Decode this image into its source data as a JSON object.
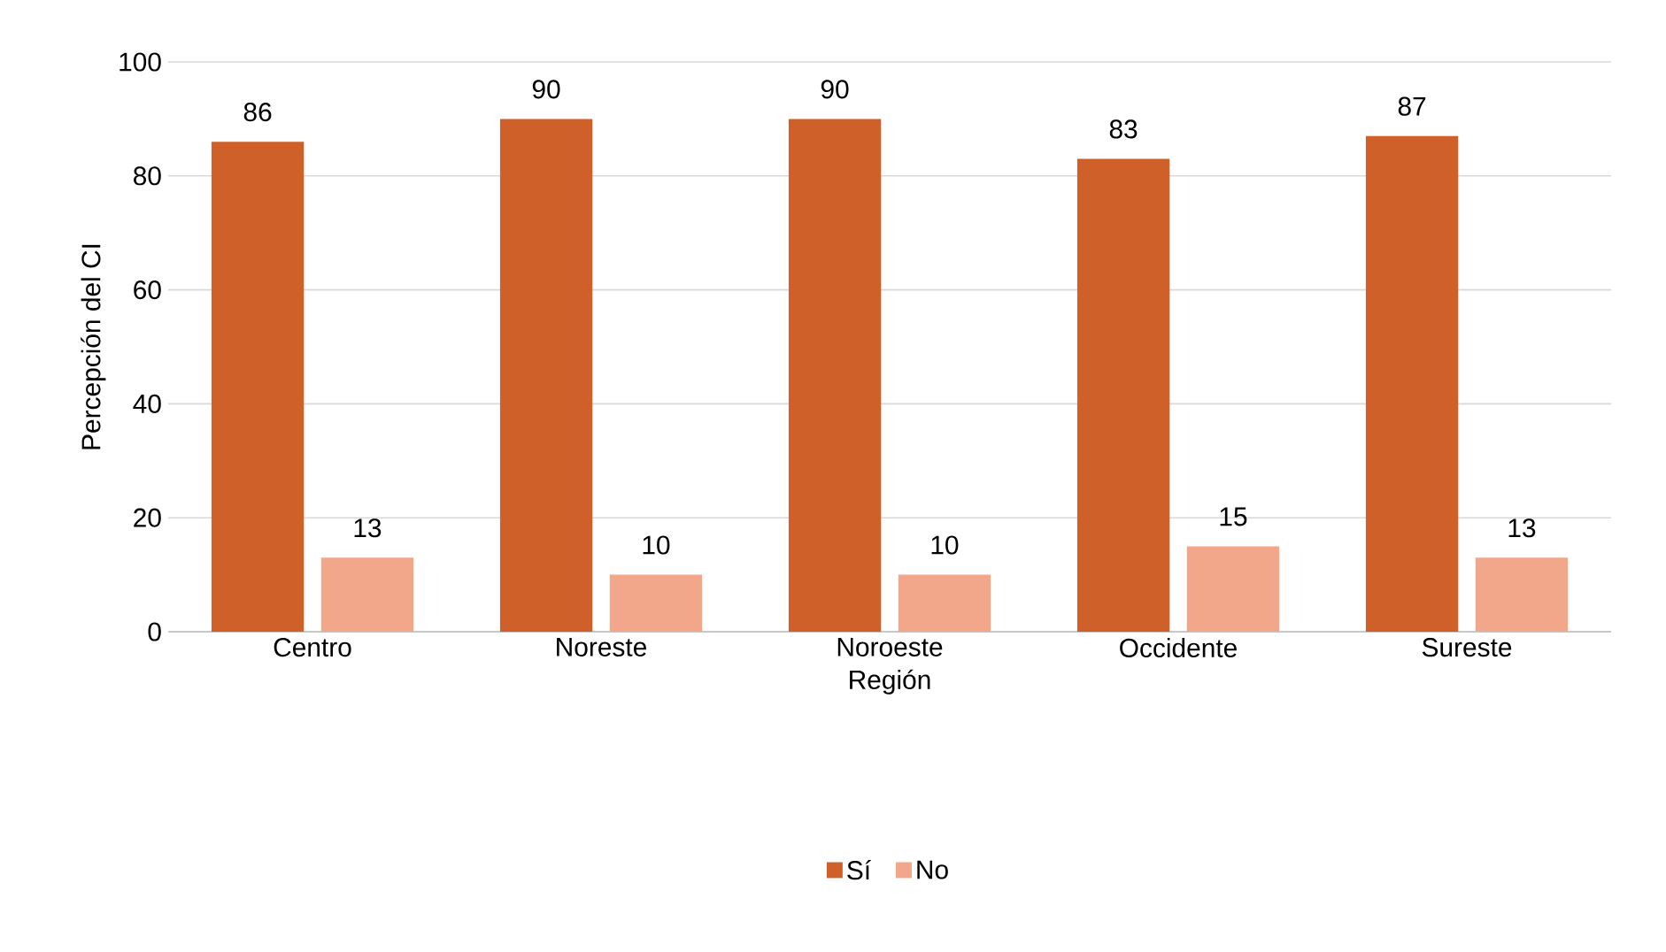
{
  "chart_data": {
    "type": "bar",
    "xlabel": "Región",
    "ylabel": "Percepción del CI",
    "categories": [
      "Centro",
      "Noreste",
      "Noroeste",
      "Occidente",
      "Sureste"
    ],
    "series": [
      {
        "name": "Sí",
        "color": "#d0602a",
        "values": [
          86,
          90,
          90,
          83,
          87
        ]
      },
      {
        "name": "No",
        "color": "#f2a68a",
        "values": [
          13,
          10,
          10,
          15,
          13
        ]
      }
    ],
    "ylim": [
      0,
      100
    ],
    "yticks": [
      0,
      20,
      40,
      60,
      80,
      100
    ],
    "grid": "y",
    "legend": "bottom",
    "data_labels": true
  }
}
